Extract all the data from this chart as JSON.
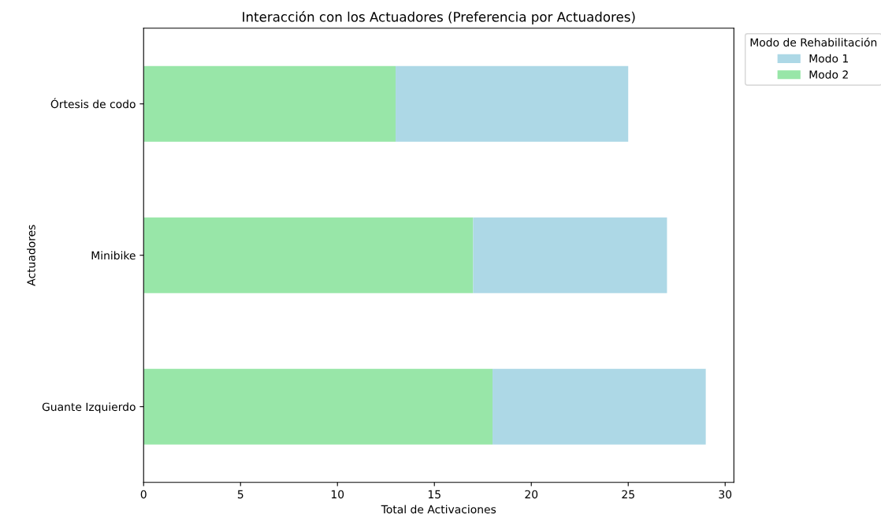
{
  "chart_data": {
    "type": "bar",
    "orientation": "horizontal",
    "stacked": true,
    "title": "Interacción con los Actuadores (Preferencia por Actuadores)",
    "xlabel": "Total de Activaciones",
    "ylabel": "Actuadores",
    "legend_title": "Modo de Rehabilitación",
    "legend": "top right",
    "categories": [
      "Órtesis de codo",
      "Minibike",
      "Guante Izquierdo"
    ],
    "series": [
      {
        "name": "Modo 2",
        "color": "#98e6a8",
        "values": [
          13,
          17,
          18
        ]
      },
      {
        "name": "Modo 1",
        "color": "#add8e6",
        "values": [
          12,
          10,
          11
        ]
      }
    ],
    "xlim": [
      0,
      30.45
    ],
    "xticks": [
      0,
      5,
      10,
      15,
      20,
      25,
      30
    ]
  }
}
